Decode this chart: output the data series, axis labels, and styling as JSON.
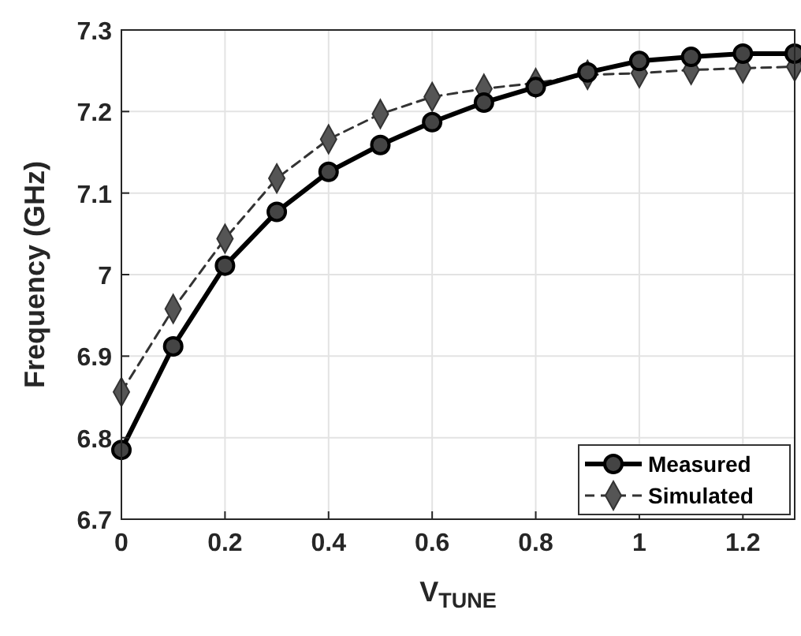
{
  "chart_data": {
    "type": "line",
    "xlabel": "V$_{TUNE}$",
    "ylabel": "Frequency (GHz)",
    "x": [
      0,
      0.1,
      0.2,
      0.3,
      0.4,
      0.5,
      0.6,
      0.7,
      0.8,
      0.9,
      1.0,
      1.1,
      1.2,
      1.3
    ],
    "series": [
      {
        "name": "Measured",
        "color": "#000000",
        "marker": "circle",
        "line_style": "solid",
        "values": [
          6.785,
          6.912,
          7.011,
          7.077,
          7.126,
          7.159,
          7.187,
          7.211,
          7.23,
          7.248,
          7.262,
          7.267,
          7.271,
          7.271
        ]
      },
      {
        "name": "Simulated",
        "color": "#333333",
        "marker": "diamond",
        "line_style": "dashed",
        "values": [
          6.856,
          6.958,
          7.044,
          7.118,
          7.166,
          7.197,
          7.218,
          7.228,
          7.235,
          7.245,
          7.247,
          7.251,
          7.253,
          7.255
        ]
      }
    ],
    "xlim": [
      0,
      1.3
    ],
    "xticks": [
      0,
      0.2,
      0.4,
      0.6,
      0.8,
      1,
      1.2
    ],
    "ylim": [
      6.7,
      7.3
    ],
    "yticks": [
      6.7,
      6.8,
      6.9,
      7,
      7.1,
      7.2,
      7.3
    ],
    "grid": true,
    "legend": "bottom right"
  }
}
